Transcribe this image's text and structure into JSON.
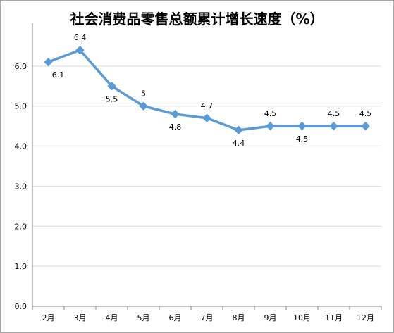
{
  "chart_data": {
    "type": "line",
    "title": "社会消费品零售总额累计增长速度（%）",
    "xlabel": "",
    "ylabel": "",
    "categories": [
      "2月",
      "3月",
      "4月",
      "5月",
      "6月",
      "7月",
      "8月",
      "9月",
      "10月",
      "11月",
      "12月"
    ],
    "series": [
      {
        "values": [
          6.1,
          6.4,
          5.5,
          5.0,
          4.8,
          4.7,
          4.4,
          4.5,
          4.5,
          4.5,
          4.5
        ],
        "data_labels": [
          "6.1",
          "6.4",
          "5.5",
          "5",
          "4.8",
          "4.7",
          "4.4",
          "4.5",
          "4.5",
          "4.5",
          "4.5"
        ],
        "color": "#5b9bd5",
        "marker": "diamond"
      }
    ],
    "ylim": [
      0,
      7
    ],
    "yticks": [
      "0.0",
      "1.0",
      "2.0",
      "3.0",
      "4.0",
      "5.0",
      "6.0"
    ],
    "grid": true,
    "grid_color": "#d9d9d9",
    "legend": "none"
  }
}
